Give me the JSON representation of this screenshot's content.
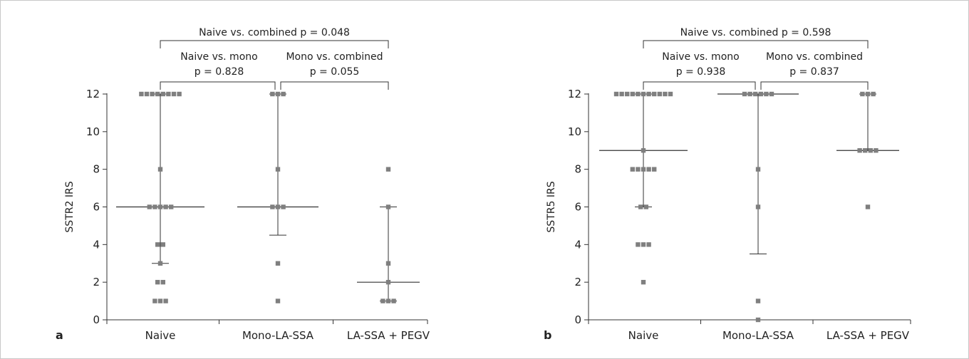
{
  "chart_data": [
    {
      "type": "scatter",
      "panel_label": "a",
      "ylabel": "SSTR2 IRS",
      "ylim": [
        0,
        12
      ],
      "yticks": [
        0,
        2,
        4,
        6,
        8,
        10,
        12
      ],
      "categories": [
        "Naive",
        "Mono-LA-SSA",
        "LA-SSA + PEGV"
      ],
      "groups": [
        {
          "category": "Naive",
          "median": 6,
          "q1": 3,
          "q3": 12,
          "points": [
            12,
            12,
            12,
            12,
            12,
            12,
            12,
            12,
            8,
            6,
            6,
            6,
            6,
            6,
            4,
            4,
            3,
            2,
            2,
            1,
            1,
            1
          ]
        },
        {
          "category": "Mono-LA-SSA",
          "median": 6,
          "q1": 4.5,
          "q3": 12,
          "points": [
            12,
            12,
            12,
            8,
            6,
            6,
            6,
            3,
            1
          ]
        },
        {
          "category": "LA-SSA + PEGV",
          "median": 2,
          "q1": 1,
          "q3": 6,
          "points": [
            8,
            6,
            3,
            2,
            1,
            1,
            1
          ]
        }
      ],
      "comparisons": [
        {
          "label": "Naive vs. combined p = 0.048"
        },
        {
          "label_line1": "Naive vs. mono",
          "label_line2": "p = 0.828"
        },
        {
          "label_line1": "Mono vs. combined",
          "label_line2": "p = 0.055"
        }
      ],
      "point_color": "#7f7f7f"
    },
    {
      "type": "scatter",
      "panel_label": "b",
      "ylabel": "SSTR5 IRS",
      "ylim": [
        0,
        12
      ],
      "yticks": [
        0,
        2,
        4,
        6,
        8,
        10,
        12
      ],
      "categories": [
        "Naive",
        "Mono-LA-SSA",
        "LA-SSA + PEGV"
      ],
      "groups": [
        {
          "category": "Naive",
          "median": 9,
          "q1": 6,
          "q3": 12,
          "points": [
            12,
            12,
            12,
            12,
            12,
            12,
            12,
            12,
            12,
            12,
            12,
            9,
            8,
            8,
            8,
            8,
            8,
            6,
            6,
            4,
            4,
            4,
            2
          ]
        },
        {
          "category": "Mono-LA-SSA",
          "median": 12,
          "q1": 3.5,
          "q3": 12,
          "points": [
            12,
            12,
            12,
            12,
            12,
            12,
            8,
            6,
            1,
            0
          ]
        },
        {
          "category": "LA-SSA + PEGV",
          "median": 9,
          "q1": 9,
          "q3": 12,
          "points": [
            12,
            12,
            12,
            9,
            9,
            9,
            9,
            6
          ]
        }
      ],
      "comparisons": [
        {
          "label": "Naive vs. combined p = 0.598"
        },
        {
          "label_line1": "Naive vs. mono",
          "label_line2": "p = 0.938"
        },
        {
          "label_line1": "Mono vs. combined",
          "label_line2": "p = 0.837"
        }
      ],
      "point_color": "#7f7f7f"
    }
  ]
}
